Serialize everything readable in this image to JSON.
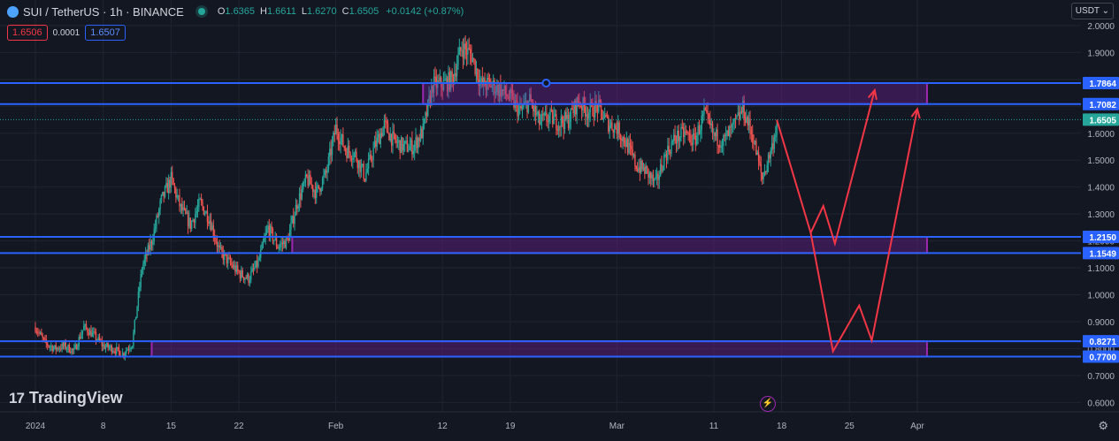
{
  "header": {
    "title": "SUI / TetherUS · 1h · BINANCE",
    "ohlc": [
      {
        "k": "O",
        "v": "1.6365"
      },
      {
        "k": "H",
        "v": "1.6611"
      },
      {
        "k": "L",
        "v": "1.6270"
      },
      {
        "k": "C",
        "v": "1.6505"
      }
    ],
    "change": "+0.0142 (+0.87%)"
  },
  "quote": {
    "sell": "1.6506",
    "spread": "0.0001",
    "buy": "1.6507"
  },
  "currency": "USDT ⌄",
  "logo": {
    "mark": "17",
    "text": "TradingView"
  },
  "colors": {
    "background": "#131722",
    "up": "#26a69a",
    "down": "#ef5350",
    "hline": "#2962ff",
    "zone_fill": "rgba(123,31,162,0.35)",
    "zone_border": "#9c27b0",
    "projection": "#f23645",
    "axis_text": "#b2b5be"
  },
  "chart_data": {
    "type": "candlestick",
    "symbol": "SUI/USDT",
    "timeframe": "1h",
    "y_ticks": [
      "2.0000",
      "1.9000",
      "1.8000",
      "1.7000",
      "1.6000",
      "1.5000",
      "1.4000",
      "1.3000",
      "1.2000",
      "1.1000",
      "1.0000",
      "0.9000",
      "0.8000",
      "0.7000",
      "0.6000"
    ],
    "y_tick_values": [
      2.0,
      1.9,
      1.8,
      1.7,
      1.6,
      1.5,
      1.4,
      1.3,
      1.2,
      1.1,
      1.0,
      0.9,
      0.8,
      0.7,
      0.6
    ],
    "y_range": [
      0.565,
      2.095
    ],
    "x_range_days": [
      "2024-01-01",
      "2024-04-01"
    ],
    "x_ticks": [
      {
        "label": "2024",
        "day": 0
      },
      {
        "label": "8",
        "day": 7
      },
      {
        "label": "15",
        "day": 14
      },
      {
        "label": "22",
        "day": 21
      },
      {
        "label": "Feb",
        "day": 31
      },
      {
        "label": "12",
        "day": 42
      },
      {
        "label": "19",
        "day": 49
      },
      {
        "label": "Mar",
        "day": 60
      },
      {
        "label": "11",
        "day": 70
      },
      {
        "label": "18",
        "day": 77
      },
      {
        "label": "25",
        "day": 84
      },
      {
        "label": "Apr",
        "day": 91
      }
    ],
    "price_path": [
      [
        0,
        0.88
      ],
      [
        1,
        0.82
      ],
      [
        2,
        0.8
      ],
      [
        3,
        0.81
      ],
      [
        4,
        0.79
      ],
      [
        5,
        0.88
      ],
      [
        6,
        0.85
      ],
      [
        7,
        0.81
      ],
      [
        8,
        0.8
      ],
      [
        9,
        0.78
      ],
      [
        10,
        0.82
      ],
      [
        11,
        1.1
      ],
      [
        12,
        1.2
      ],
      [
        13,
        1.35
      ],
      [
        14,
        1.43
      ],
      [
        15,
        1.32
      ],
      [
        16,
        1.26
      ],
      [
        17,
        1.34
      ],
      [
        18,
        1.28
      ],
      [
        19,
        1.16
      ],
      [
        20,
        1.12
      ],
      [
        21,
        1.08
      ],
      [
        22,
        1.06
      ],
      [
        23,
        1.12
      ],
      [
        24,
        1.25
      ],
      [
        25,
        1.18
      ],
      [
        26,
        1.2
      ],
      [
        27,
        1.34
      ],
      [
        28,
        1.43
      ],
      [
        29,
        1.38
      ],
      [
        30,
        1.45
      ],
      [
        31,
        1.62
      ],
      [
        32,
        1.54
      ],
      [
        33,
        1.52
      ],
      [
        34,
        1.44
      ],
      [
        35,
        1.55
      ],
      [
        36,
        1.63
      ],
      [
        37,
        1.57
      ],
      [
        38,
        1.55
      ],
      [
        39,
        1.55
      ],
      [
        40,
        1.61
      ],
      [
        41,
        1.78
      ],
      [
        42,
        1.78
      ],
      [
        43,
        1.8
      ],
      [
        44,
        1.92
      ],
      [
        45,
        1.89
      ],
      [
        46,
        1.78
      ],
      [
        47,
        1.78
      ],
      [
        48,
        1.76
      ],
      [
        49,
        1.73
      ],
      [
        50,
        1.68
      ],
      [
        51,
        1.72
      ],
      [
        52,
        1.64
      ],
      [
        53,
        1.66
      ],
      [
        54,
        1.64
      ],
      [
        55,
        1.65
      ],
      [
        56,
        1.72
      ],
      [
        57,
        1.68
      ],
      [
        58,
        1.7
      ],
      [
        59,
        1.64
      ],
      [
        60,
        1.62
      ],
      [
        61,
        1.56
      ],
      [
        62,
        1.48
      ],
      [
        63,
        1.46
      ],
      [
        64,
        1.41
      ],
      [
        65,
        1.52
      ],
      [
        66,
        1.58
      ],
      [
        67,
        1.6
      ],
      [
        68,
        1.57
      ],
      [
        69,
        1.67
      ],
      [
        70,
        1.59
      ],
      [
        71,
        1.57
      ],
      [
        72,
        1.62
      ],
      [
        73,
        1.69
      ],
      [
        74,
        1.59
      ],
      [
        75,
        1.43
      ],
      [
        76,
        1.55
      ],
      [
        76.6,
        1.65
      ]
    ],
    "horizontal_levels": [
      {
        "price": 1.7864,
        "label": "1.7864"
      },
      {
        "price": 1.7082,
        "label": "1.7082"
      },
      {
        "price": 1.215,
        "label": "1.2150"
      },
      {
        "price": 1.1549,
        "label": "1.1549"
      },
      {
        "price": 0.8271,
        "label": "0.8271"
      },
      {
        "price": 0.77,
        "label": "0.7700"
      }
    ],
    "current_price": {
      "price": 1.6505,
      "label": "1.6505"
    },
    "zones": [
      {
        "top": 1.7864,
        "bottom": 1.7082,
        "start_day": 40,
        "end_day": 92
      },
      {
        "top": 1.215,
        "bottom": 1.1549,
        "start_day": 26.5,
        "end_day": 92
      },
      {
        "top": 0.8271,
        "bottom": 0.77,
        "start_day": 12,
        "end_day": 92
      }
    ],
    "projection_paths": [
      [
        [
          76.5,
          1.65
        ],
        [
          80,
          1.23
        ],
        [
          81.3,
          1.33
        ],
        [
          82.5,
          1.19
        ],
        [
          86.6,
          1.76
        ]
      ],
      [
        [
          80,
          1.23
        ],
        [
          82.3,
          0.79
        ],
        [
          85,
          0.96
        ],
        [
          86.3,
          0.83
        ],
        [
          91,
          1.69
        ]
      ]
    ]
  }
}
